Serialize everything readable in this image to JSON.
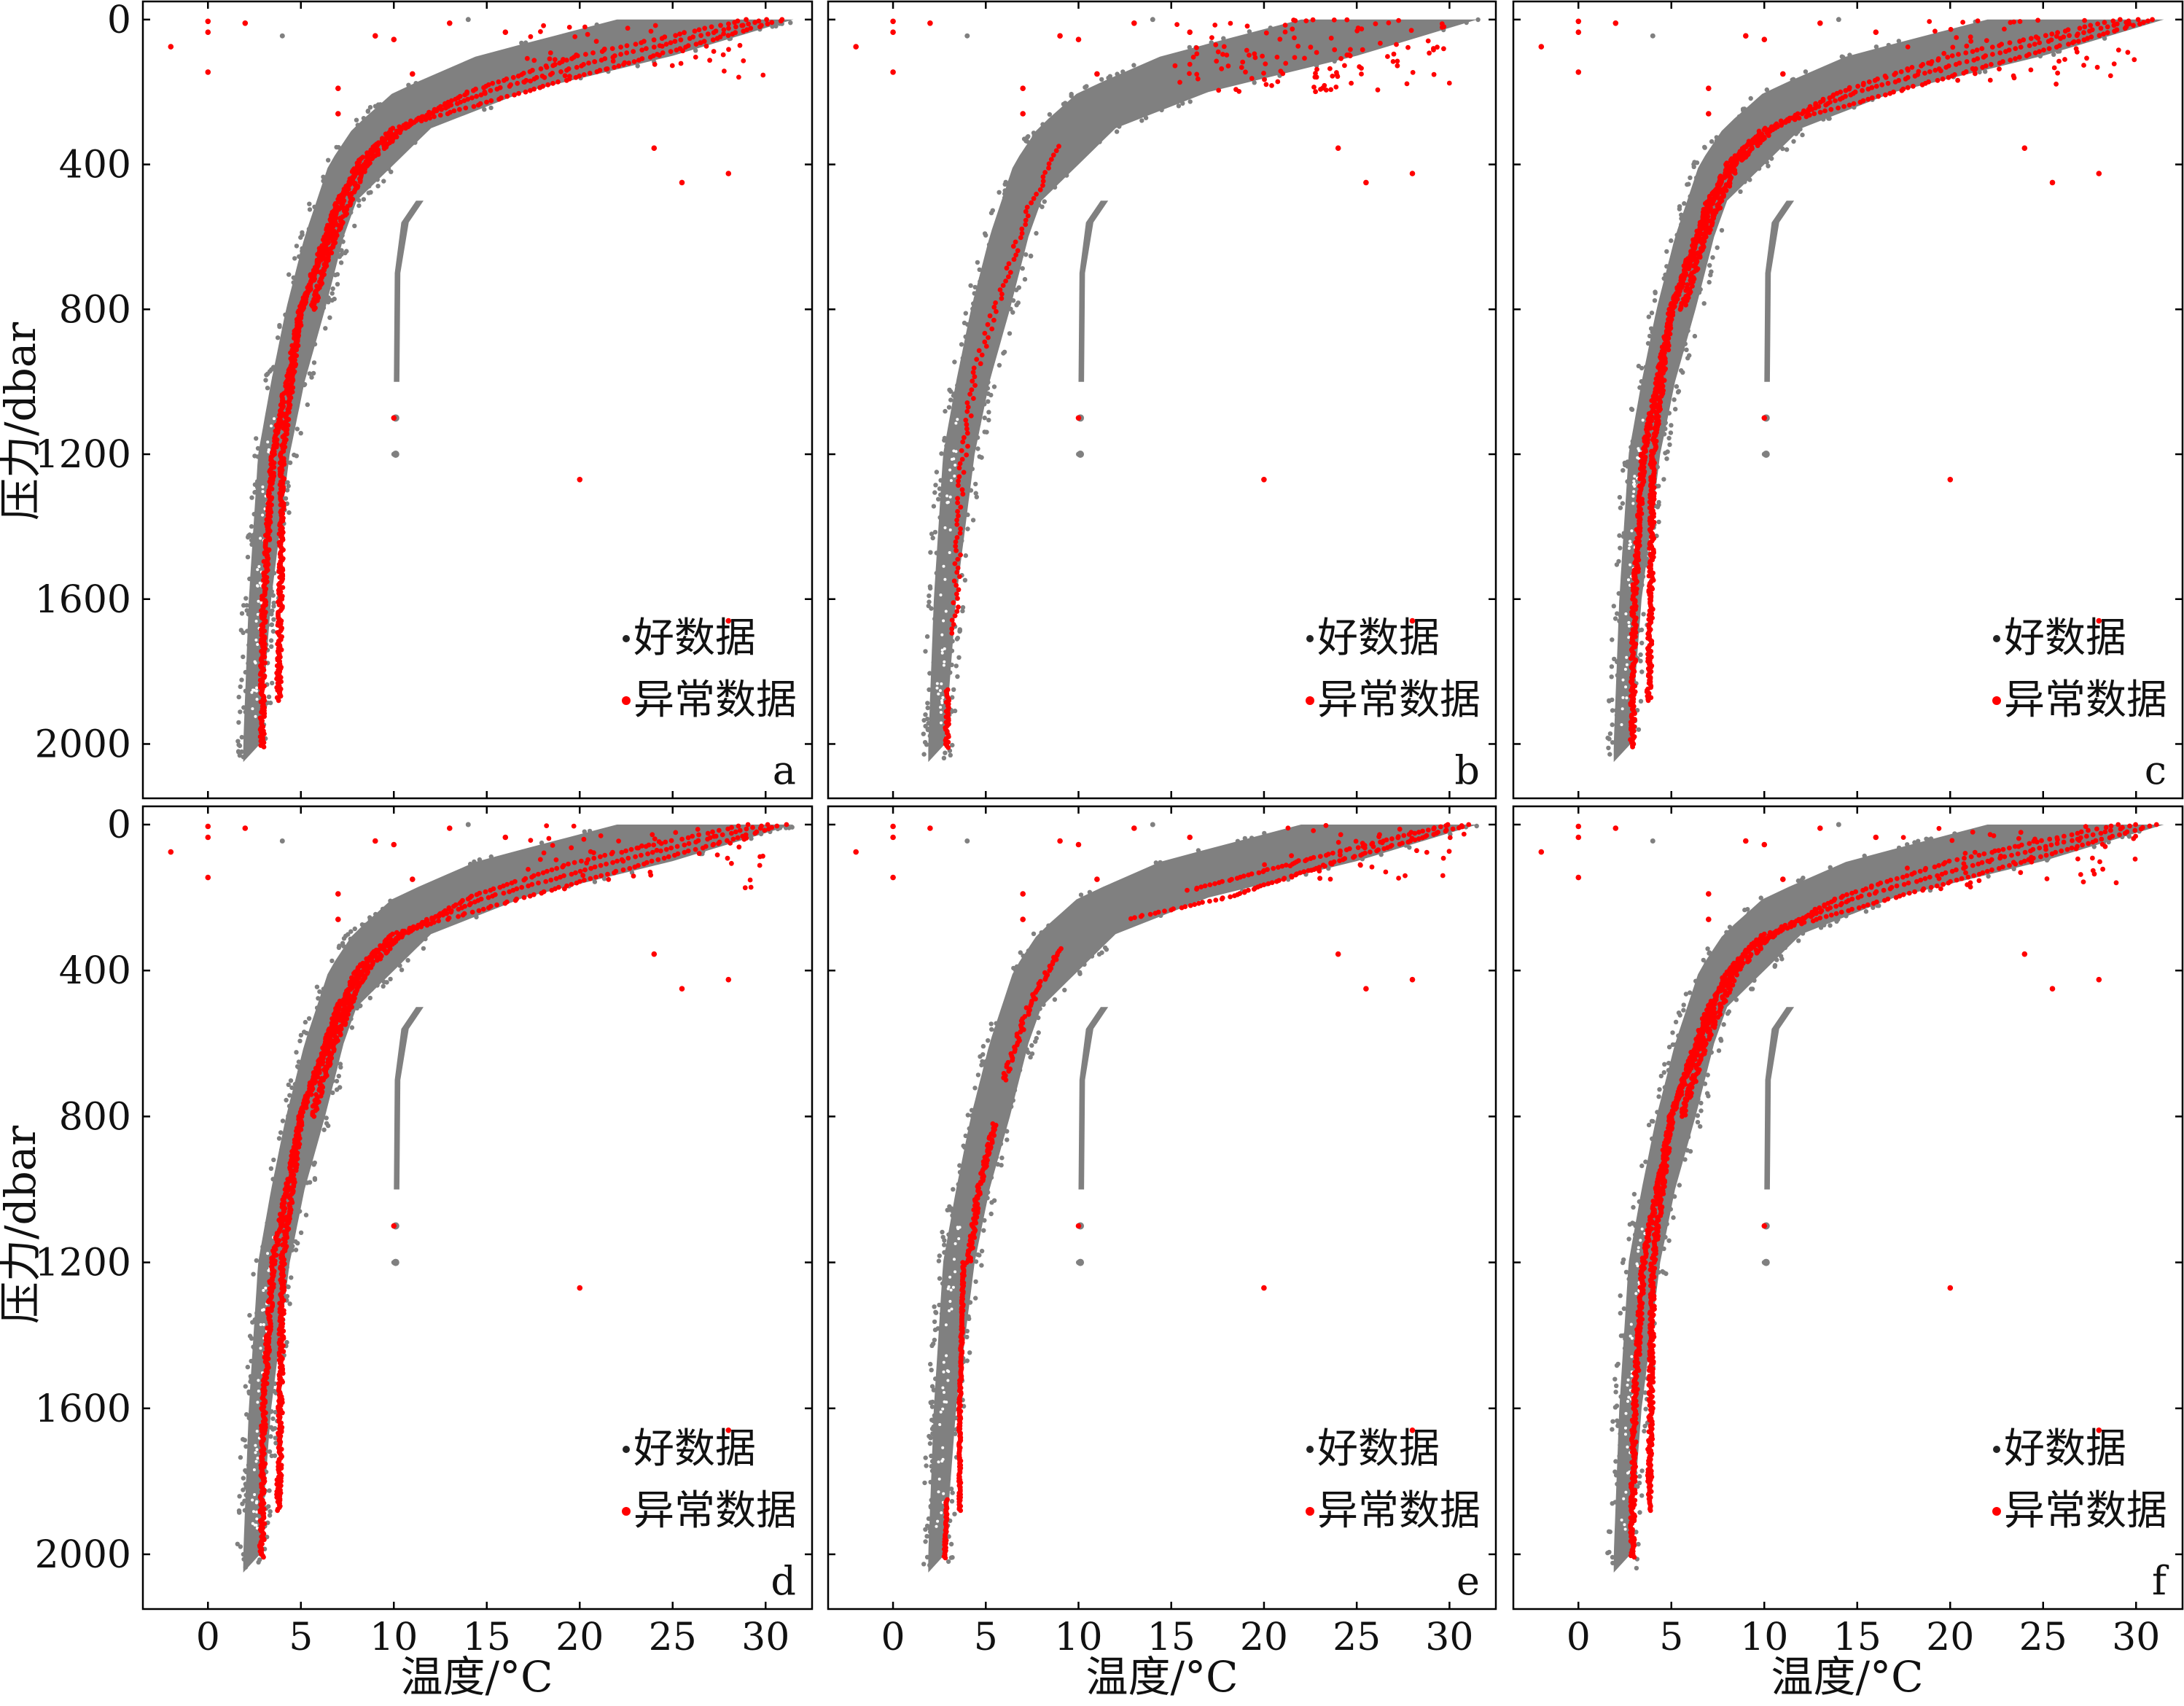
{
  "figure": {
    "ylabel": "压力/dbar",
    "xlabel": "温度/°C"
  },
  "legend": {
    "good": "好数据",
    "bad": "异常数据"
  },
  "colors": {
    "good": "#808080",
    "bad": "#ff0000",
    "axis": "#000000"
  },
  "chart_data": [
    {
      "type": "scatter",
      "panel": "a",
      "xlim": [
        -3.5,
        32.5
      ],
      "ylim": [
        2150,
        -50
      ],
      "y_inverted": true,
      "xticks": [
        "0",
        "5",
        "10",
        "15",
        "20",
        "25",
        "30"
      ],
      "yticks": [
        "0",
        "400",
        "800",
        "1200",
        "1600",
        "2000"
      ],
      "series": [
        {
          "name": "好数据",
          "profile_envelope_T_warm": [
            [
              0,
              31.5
            ],
            [
              100,
              25
            ],
            [
              200,
              17
            ],
            [
              300,
              12
            ],
            [
              400,
              10
            ],
            [
              500,
              8
            ],
            [
              600,
              7.3
            ],
            [
              800,
              6.3
            ],
            [
              1000,
              5.2
            ],
            [
              1200,
              4.4
            ],
            [
              1600,
              3.4
            ],
            [
              2000,
              2.8
            ]
          ],
          "profile_envelope_T_cold": [
            [
              0,
              22
            ],
            [
              100,
              14.5
            ],
            [
              200,
              10
            ],
            [
              300,
              7.8
            ],
            [
              400,
              6.5
            ],
            [
              600,
              5.2
            ],
            [
              800,
              4.2
            ],
            [
              1000,
              3.4
            ],
            [
              1200,
              2.7
            ],
            [
              1600,
              2.2
            ],
            [
              2000,
              1.9
            ]
          ],
          "deep_branch_T10": [
            [
              500,
              11.5
            ],
            [
              650,
              10.4
            ],
            [
              1000,
              10.1
            ]
          ],
          "outliers": [
            [
              -2,
              75
            ],
            [
              0,
              5
            ],
            [
              0,
              35
            ],
            [
              0,
              145
            ],
            [
              2,
              10
            ],
            [
              4,
              45
            ],
            [
              7,
              190
            ],
            [
              7,
              260
            ],
            [
              9,
              45
            ],
            [
              10,
              55
            ],
            [
              10,
              1100
            ],
            [
              10,
              1200
            ],
            [
              11,
              150
            ],
            [
              13,
              10
            ],
            [
              14,
              0
            ],
            [
              16,
              35
            ],
            [
              20,
              1270
            ],
            [
              24,
              355
            ],
            [
              25.5,
              450
            ],
            [
              28,
              425
            ],
            [
              28,
              1660
            ]
          ]
        },
        {
          "name": "异常数据",
          "profiles": [
            [
              [
                0,
                31
              ],
              [
                100,
                24
              ],
              [
                200,
                17
              ],
              [
                300,
                10
              ],
              [
                400,
                8
              ],
              [
                600,
                6.5
              ],
              [
                800,
                5
              ],
              [
                1000,
                4.5
              ],
              [
                1200,
                4
              ],
              [
                1600,
                3.9
              ],
              [
                1880,
                3.8
              ]
            ],
            [
              [
                0,
                30
              ],
              [
                100,
                22
              ],
              [
                200,
                15
              ],
              [
                280,
                11
              ],
              [
                350,
                9
              ],
              [
                500,
                7
              ],
              [
                800,
                5
              ],
              [
                1200,
                3.5
              ],
              [
                1600,
                3
              ],
              [
                2000,
                2.9
              ]
            ]
          ],
          "outliers": [
            [
              -2,
              75
            ],
            [
              0,
              5
            ],
            [
              0,
              35
            ],
            [
              0,
              145
            ],
            [
              2,
              10
            ],
            [
              7,
              190
            ],
            [
              7,
              260
            ],
            [
              9,
              45
            ],
            [
              10,
              55
            ],
            [
              10,
              1100
            ],
            [
              11,
              150
            ],
            [
              13,
              10
            ],
            [
              16,
              35
            ],
            [
              20,
              1270
            ],
            [
              24,
              355
            ],
            [
              25.5,
              450
            ],
            [
              28,
              425
            ],
            [
              28,
              1660
            ]
          ]
        }
      ]
    },
    {
      "type": "scatter",
      "panel": "b",
      "xlim": [
        -3.5,
        32.5
      ],
      "ylim": [
        2150,
        -50
      ],
      "y_inverted": true
    },
    {
      "type": "scatter",
      "panel": "c",
      "xlim": [
        -3.5,
        32.5
      ],
      "ylim": [
        2150,
        -50
      ],
      "y_inverted": true
    },
    {
      "type": "scatter",
      "panel": "d",
      "xlim": [
        -3.5,
        32.5
      ],
      "ylim": [
        2150,
        -50
      ],
      "y_inverted": true
    },
    {
      "type": "scatter",
      "panel": "e",
      "xlim": [
        -3.5,
        32.5
      ],
      "ylim": [
        2150,
        -50
      ],
      "y_inverted": true
    },
    {
      "type": "scatter",
      "panel": "f",
      "xlim": [
        -3.5,
        32.5
      ],
      "ylim": [
        2150,
        -50
      ],
      "y_inverted": true
    }
  ],
  "panels": [
    {
      "letter": "a",
      "legend_pos": "bottom-right",
      "bad_mode": "full"
    },
    {
      "letter": "b",
      "legend_pos": "bottom-right",
      "bad_mode": "scattered"
    },
    {
      "letter": "c",
      "legend_pos": "bottom-right",
      "bad_mode": "full"
    },
    {
      "letter": "d",
      "legend_pos": "bottom-right",
      "bad_mode": "full"
    },
    {
      "letter": "e",
      "legend_pos": "bottom-right",
      "bad_mode": "partial"
    },
    {
      "letter": "f",
      "legend_pos": "bottom-right",
      "bad_mode": "full"
    }
  ],
  "axes": {
    "xticks": [
      0,
      5,
      10,
      15,
      20,
      25,
      30
    ],
    "yticks": [
      0,
      400,
      800,
      1200,
      1600,
      2000
    ],
    "xlim": [
      -3.5,
      32.5
    ],
    "ylim": [
      2150,
      -50
    ]
  }
}
